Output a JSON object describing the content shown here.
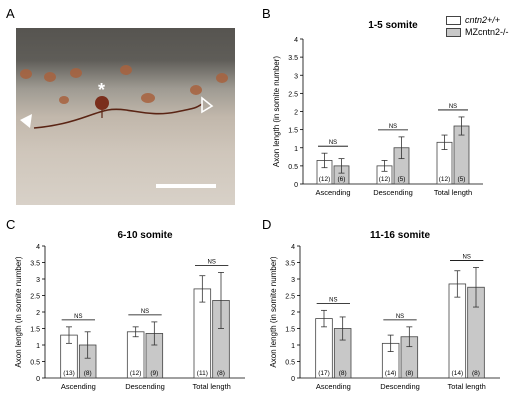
{
  "panels": {
    "a": {
      "letter": "A",
      "marker_asterisk": "*"
    },
    "b": {
      "letter": "B"
    },
    "c": {
      "letter": "C"
    },
    "d": {
      "letter": "D"
    }
  },
  "legend": {
    "wt": "cntn2+/+",
    "mz": "MZcntn2-/-",
    "colors": {
      "wt": "#ffffff",
      "mz": "#c8c8c8",
      "outline": "#444444"
    }
  },
  "chart_data": [
    {
      "panel": "B",
      "type": "bar",
      "title": "1-5 somite",
      "ylabel": "Axon length (in somite number)",
      "ylim": [
        0,
        4
      ],
      "yticks": [
        "0",
        "0.5",
        "1",
        "1.5",
        "2",
        "2.5",
        "3",
        "3.5",
        "4"
      ],
      "categories": [
        "Ascending",
        "Descending",
        "Total  length"
      ],
      "series": [
        {
          "name": "cntn2+/+",
          "values": [
            0.65,
            0.5,
            1.15
          ],
          "errors": [
            0.2,
            0.15,
            0.2
          ],
          "n": [
            "(12)",
            "(12)",
            "(12)"
          ]
        },
        {
          "name": "MZcntn2-/-",
          "values": [
            0.5,
            1.0,
            1.6
          ],
          "errors": [
            0.2,
            0.3,
            0.25
          ],
          "n": [
            "(6)",
            "(5)",
            "(5)"
          ]
        }
      ],
      "significance": [
        "NS",
        "NS",
        "NS"
      ]
    },
    {
      "panel": "C",
      "type": "bar",
      "title": "6-10 somite",
      "ylabel": "Axon length (in somite number)",
      "ylim": [
        0,
        4
      ],
      "yticks": [
        "0",
        "0.5",
        "1",
        "1.5",
        "2",
        "2.5",
        "3",
        "3.5",
        "4"
      ],
      "categories": [
        "Ascending",
        "Descending",
        "Total length"
      ],
      "series": [
        {
          "name": "cntn2+/+",
          "values": [
            1.3,
            1.4,
            2.7
          ],
          "errors": [
            0.25,
            0.15,
            0.4
          ],
          "n": [
            "(13)",
            "(12)",
            "(11)"
          ]
        },
        {
          "name": "MZcntn2-/-",
          "values": [
            1.0,
            1.35,
            2.35
          ],
          "errors": [
            0.4,
            0.35,
            0.85
          ],
          "n": [
            "(8)",
            "(9)",
            "(8)"
          ]
        }
      ],
      "significance": [
        "NS",
        "NS",
        "NS"
      ]
    },
    {
      "panel": "D",
      "type": "bar",
      "title": "11-16 somite",
      "ylabel": "Axon length (in somite number)",
      "ylim": [
        0,
        4
      ],
      "yticks": [
        "0",
        "0.5",
        "1",
        "1.5",
        "2",
        "2.5",
        "3",
        "3.5",
        "4"
      ],
      "categories": [
        "Ascending",
        "Descending",
        "Total length"
      ],
      "series": [
        {
          "name": "cntn2+/+",
          "values": [
            1.8,
            1.05,
            2.85
          ],
          "errors": [
            0.25,
            0.25,
            0.4
          ],
          "n": [
            "(17)",
            "(14)",
            "(14)"
          ]
        },
        {
          "name": "MZcntn2-/-",
          "values": [
            1.5,
            1.25,
            2.75
          ],
          "errors": [
            0.35,
            0.3,
            0.6
          ],
          "n": [
            "(8)",
            "(8)",
            "(8)"
          ]
        }
      ],
      "significance": [
        "NS",
        "NS",
        "NS"
      ]
    }
  ]
}
